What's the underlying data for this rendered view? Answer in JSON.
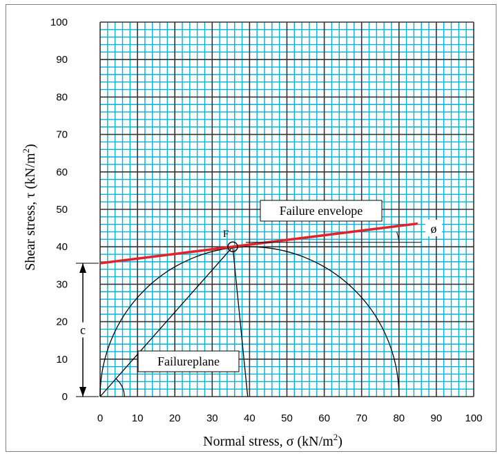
{
  "chart_data": {
    "type": "line",
    "title": "",
    "xlabel": "Normal stress, σ (kN/m",
    "xlabel_sup": "2",
    "xlabel_close": ")",
    "ylabel": "Shear stress, τ (kN/m",
    "ylabel_sup": "2",
    "ylabel_close": ")",
    "xlim": [
      0,
      100
    ],
    "ylim": [
      0,
      100
    ],
    "x_ticks": [
      "0",
      "10",
      "20",
      "30",
      "40",
      "50",
      "60",
      "70",
      "80",
      "90",
      "100"
    ],
    "y_ticks": [
      "0",
      "10",
      "20",
      "30",
      "40",
      "50",
      "60",
      "70",
      "80",
      "90",
      "100"
    ],
    "grid": true,
    "grid_minor_step": 2,
    "grid_major_step": 10,
    "colors": {
      "grid_minor": "#00b0d8",
      "grid_major": "#333333",
      "envelope": "#e0242c",
      "circle": "#000000"
    },
    "failure_envelope": {
      "label": "Failure envelope",
      "x": [
        0,
        85
      ],
      "y": [
        35.6,
        46.2
      ]
    },
    "mohr_circle": {
      "sigma_min": 0,
      "sigma_max": 80,
      "center": 40,
      "radius": 40
    },
    "failure_point": {
      "label": "F",
      "x": 35.5,
      "y": 40
    },
    "failure_plane": {
      "label": "Failureplane",
      "x": [
        0,
        35.5
      ],
      "y": [
        0,
        40
      ]
    },
    "pole_line": {
      "x": [
        35.5,
        39.5
      ],
      "y": [
        40,
        0
      ]
    },
    "cohesion_label": "c",
    "friction_angle_label": "ø"
  }
}
